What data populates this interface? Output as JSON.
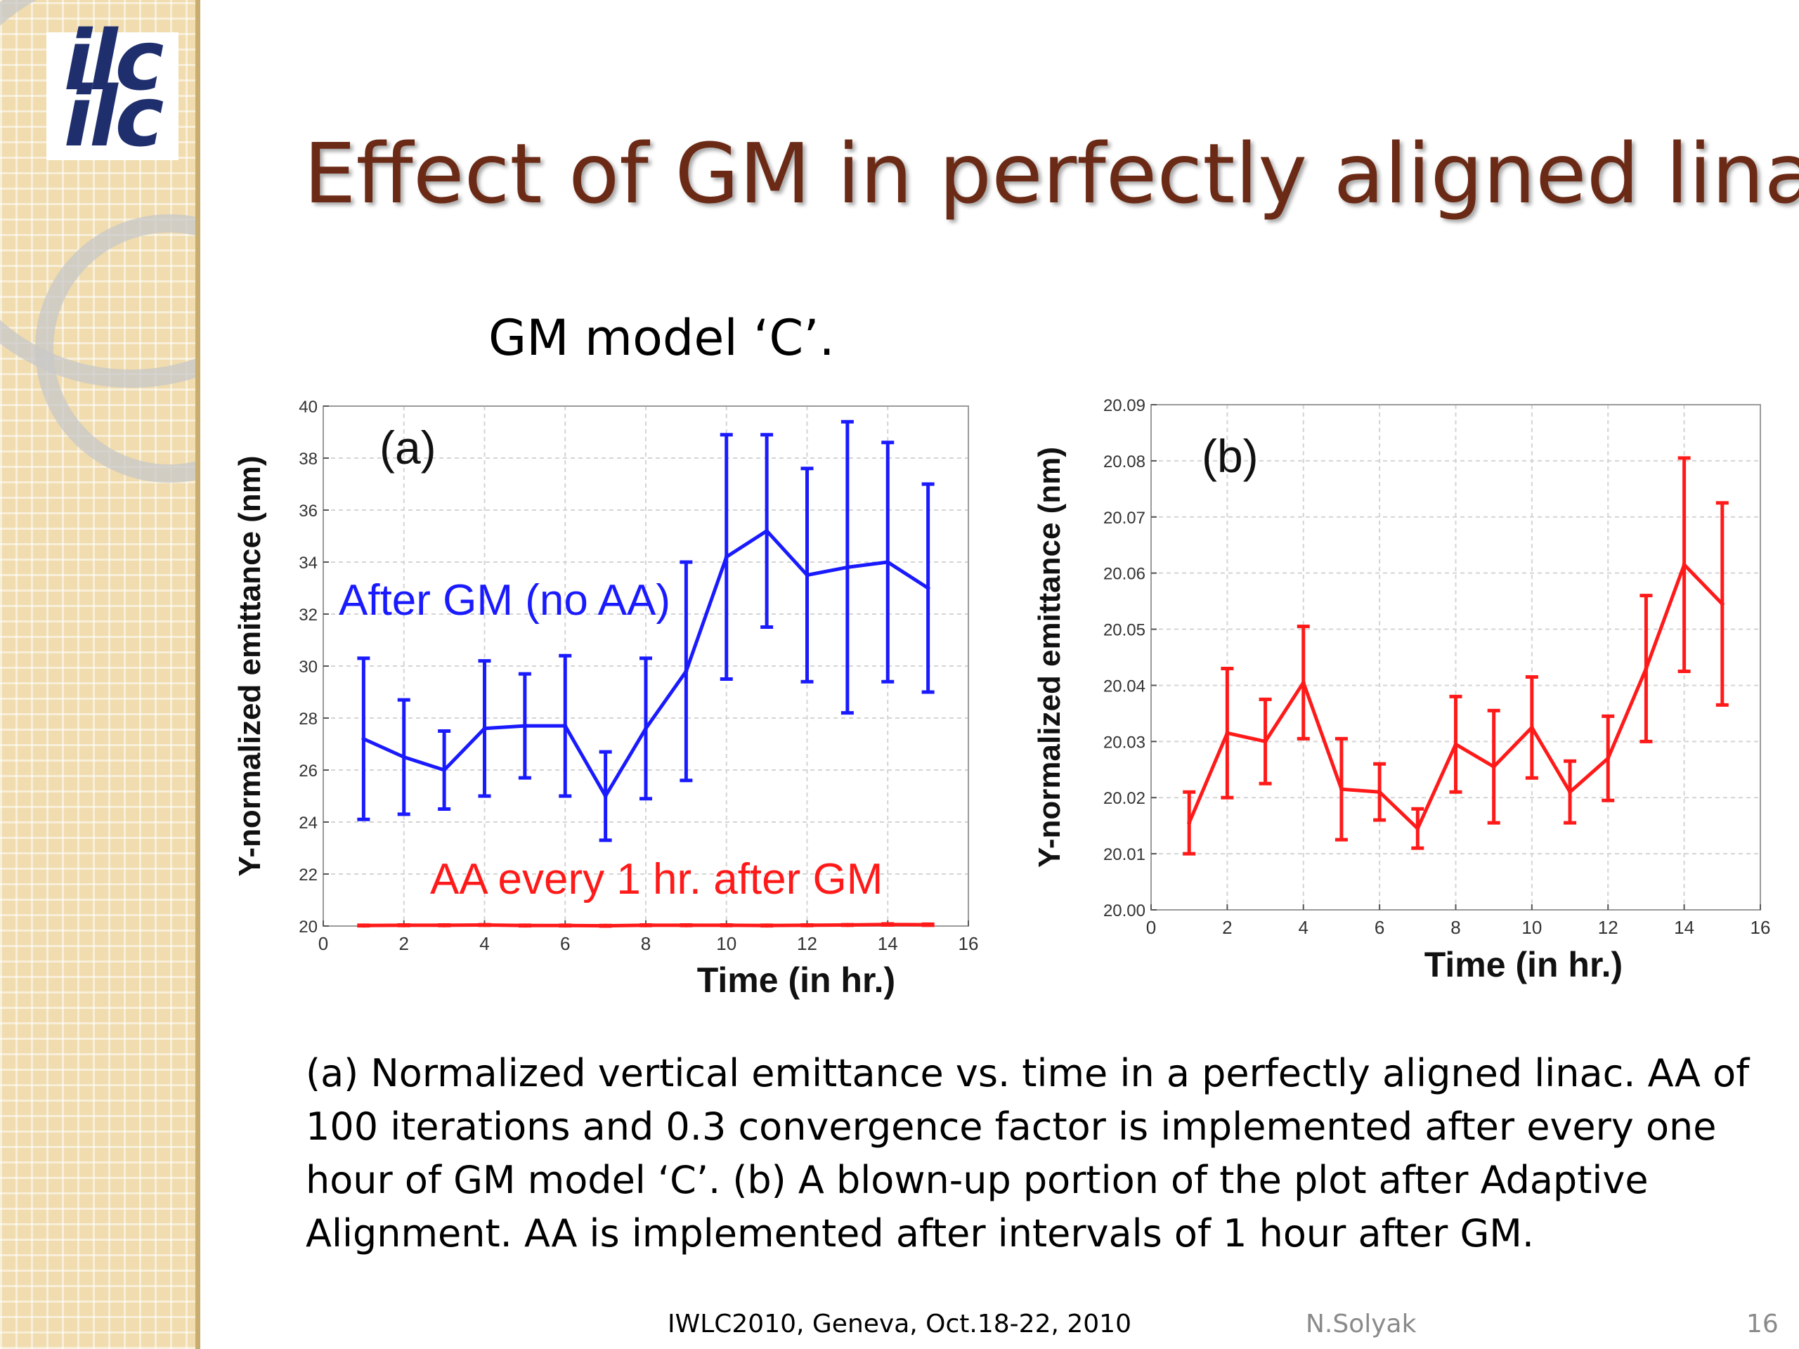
{
  "slide": {
    "title": "Effect of GM in perfectly aligned linac",
    "subtitle": "GM model ‘C’.",
    "caption_lines": [
      "(a) Normalized vertical emittance vs. time in a perfectly aligned linac.  AA of",
      "100 iterations and 0.3 convergence factor is implemented after every one",
      "hour of GM model ‘C’. (b) A blown-up portion of the plot after Adaptive",
      "Alignment.  AA is implemented after intervals of 1 hour after GM."
    ],
    "footer": {
      "event": "IWLC2010, Geneva, Oct.18-22, 2010",
      "author": "N.Solyak",
      "page": "16"
    },
    "logo": {
      "top": "ilc",
      "bottom": "ilc"
    }
  },
  "chart_data": [
    {
      "type": "line",
      "panel_label": "(a)",
      "xlabel": "Time (in hr.)",
      "ylabel": "Y-normalized emittance (nm)",
      "xlim": [
        0,
        16
      ],
      "ylim": [
        20,
        40
      ],
      "xticks": [
        0,
        2,
        4,
        6,
        8,
        10,
        12,
        14,
        16
      ],
      "yticks": [
        20,
        22,
        24,
        26,
        28,
        30,
        32,
        34,
        36,
        38,
        40
      ],
      "grid": true,
      "series": [
        {
          "name": "After GM (no AA)",
          "color": "#1a1aff",
          "x": [
            1,
            2,
            3,
            4,
            5,
            6,
            7,
            8,
            9,
            10,
            11,
            12,
            13,
            14,
            15
          ],
          "y": [
            27.2,
            26.5,
            26.0,
            27.6,
            27.7,
            27.7,
            25.0,
            27.6,
            29.8,
            34.2,
            35.2,
            33.5,
            33.8,
            34.0,
            33.0
          ],
          "err": [
            3.1,
            2.2,
            1.5,
            2.6,
            2.0,
            2.7,
            1.7,
            2.7,
            4.2,
            4.7,
            3.7,
            4.1,
            5.6,
            4.6,
            4.0
          ]
        },
        {
          "name": "AA every 1 hr. after GM",
          "color": "#ff1a1a",
          "x": [
            1,
            2,
            3,
            4,
            5,
            6,
            7,
            8,
            9,
            10,
            11,
            12,
            13,
            14,
            15
          ],
          "y": [
            20.02,
            20.03,
            20.03,
            20.04,
            20.02,
            20.02,
            20.01,
            20.03,
            20.03,
            20.03,
            20.02,
            20.03,
            20.04,
            20.06,
            20.05
          ],
          "err": [
            0.01,
            0.01,
            0.01,
            0.01,
            0.01,
            0.01,
            0.01,
            0.01,
            0.01,
            0.01,
            0.01,
            0.01,
            0.01,
            0.02,
            0.02
          ]
        }
      ]
    },
    {
      "type": "line",
      "panel_label": "(b)",
      "xlabel": "Time (in hr.)",
      "ylabel": "Y-normalized emittance (nm)",
      "xlim": [
        0,
        16
      ],
      "ylim": [
        20,
        20.09
      ],
      "xticks": [
        0,
        2,
        4,
        6,
        8,
        10,
        12,
        14,
        16
      ],
      "yticks": [
        20,
        20.01,
        20.02,
        20.03,
        20.04,
        20.05,
        20.06,
        20.07,
        20.08,
        20.09
      ],
      "grid": true,
      "series": [
        {
          "color": "#ff1a1a",
          "x": [
            1,
            2,
            3,
            4,
            5,
            6,
            7,
            8,
            9,
            10,
            11,
            12,
            13,
            14,
            15
          ],
          "y": [
            20.0155,
            20.0315,
            20.03,
            20.0405,
            20.0215,
            20.021,
            20.0145,
            20.0295,
            20.0255,
            20.0325,
            20.021,
            20.027,
            20.043,
            20.0615,
            20.0545
          ],
          "err": [
            0.0055,
            0.0115,
            0.0075,
            0.01,
            0.009,
            0.005,
            0.0035,
            0.0085,
            0.01,
            0.009,
            0.0055,
            0.0075,
            0.013,
            0.019,
            0.018
          ]
        }
      ]
    }
  ]
}
